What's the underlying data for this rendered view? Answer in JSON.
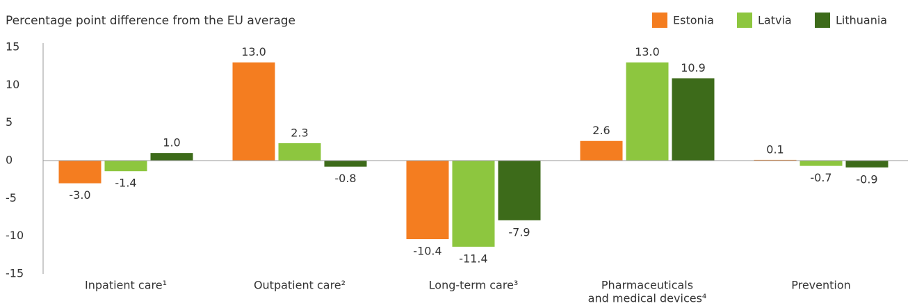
{
  "chart_data": {
    "type": "bar",
    "title": "Percentage point difference from the EU average",
    "categories": [
      [
        "Inpatient care¹"
      ],
      [
        "Outpatient care²"
      ],
      [
        "Long-term care³"
      ],
      [
        "Pharmaceuticals",
        "and medical devices⁴"
      ],
      [
        "Prevention"
      ]
    ],
    "series": [
      {
        "name": "Estonia",
        "color": "#f47d20",
        "values": [
          -3.0,
          13.0,
          -10.4,
          2.6,
          0.1
        ],
        "value_labels": [
          "-3.0",
          "13.0",
          "-10.4",
          "2.6",
          "0.1"
        ]
      },
      {
        "name": "Latvia",
        "color": "#8dc63f",
        "values": [
          -1.4,
          2.3,
          -11.4,
          13.0,
          -0.7
        ],
        "value_labels": [
          "-1.4",
          "2.3",
          "-11.4",
          "13.0",
          "-0.7"
        ]
      },
      {
        "name": "Lithuania",
        "color": "#3d6b1a",
        "values": [
          1.0,
          -0.8,
          -7.9,
          10.9,
          -0.9
        ],
        "value_labels": [
          "1.0",
          "-0.8",
          "-7.9",
          "10.9",
          "-0.9"
        ]
      }
    ],
    "ylim": [
      -15,
      15
    ],
    "yticks": [
      15,
      10,
      5,
      0,
      -5,
      -10,
      -15
    ],
    "legend": "top-right"
  }
}
